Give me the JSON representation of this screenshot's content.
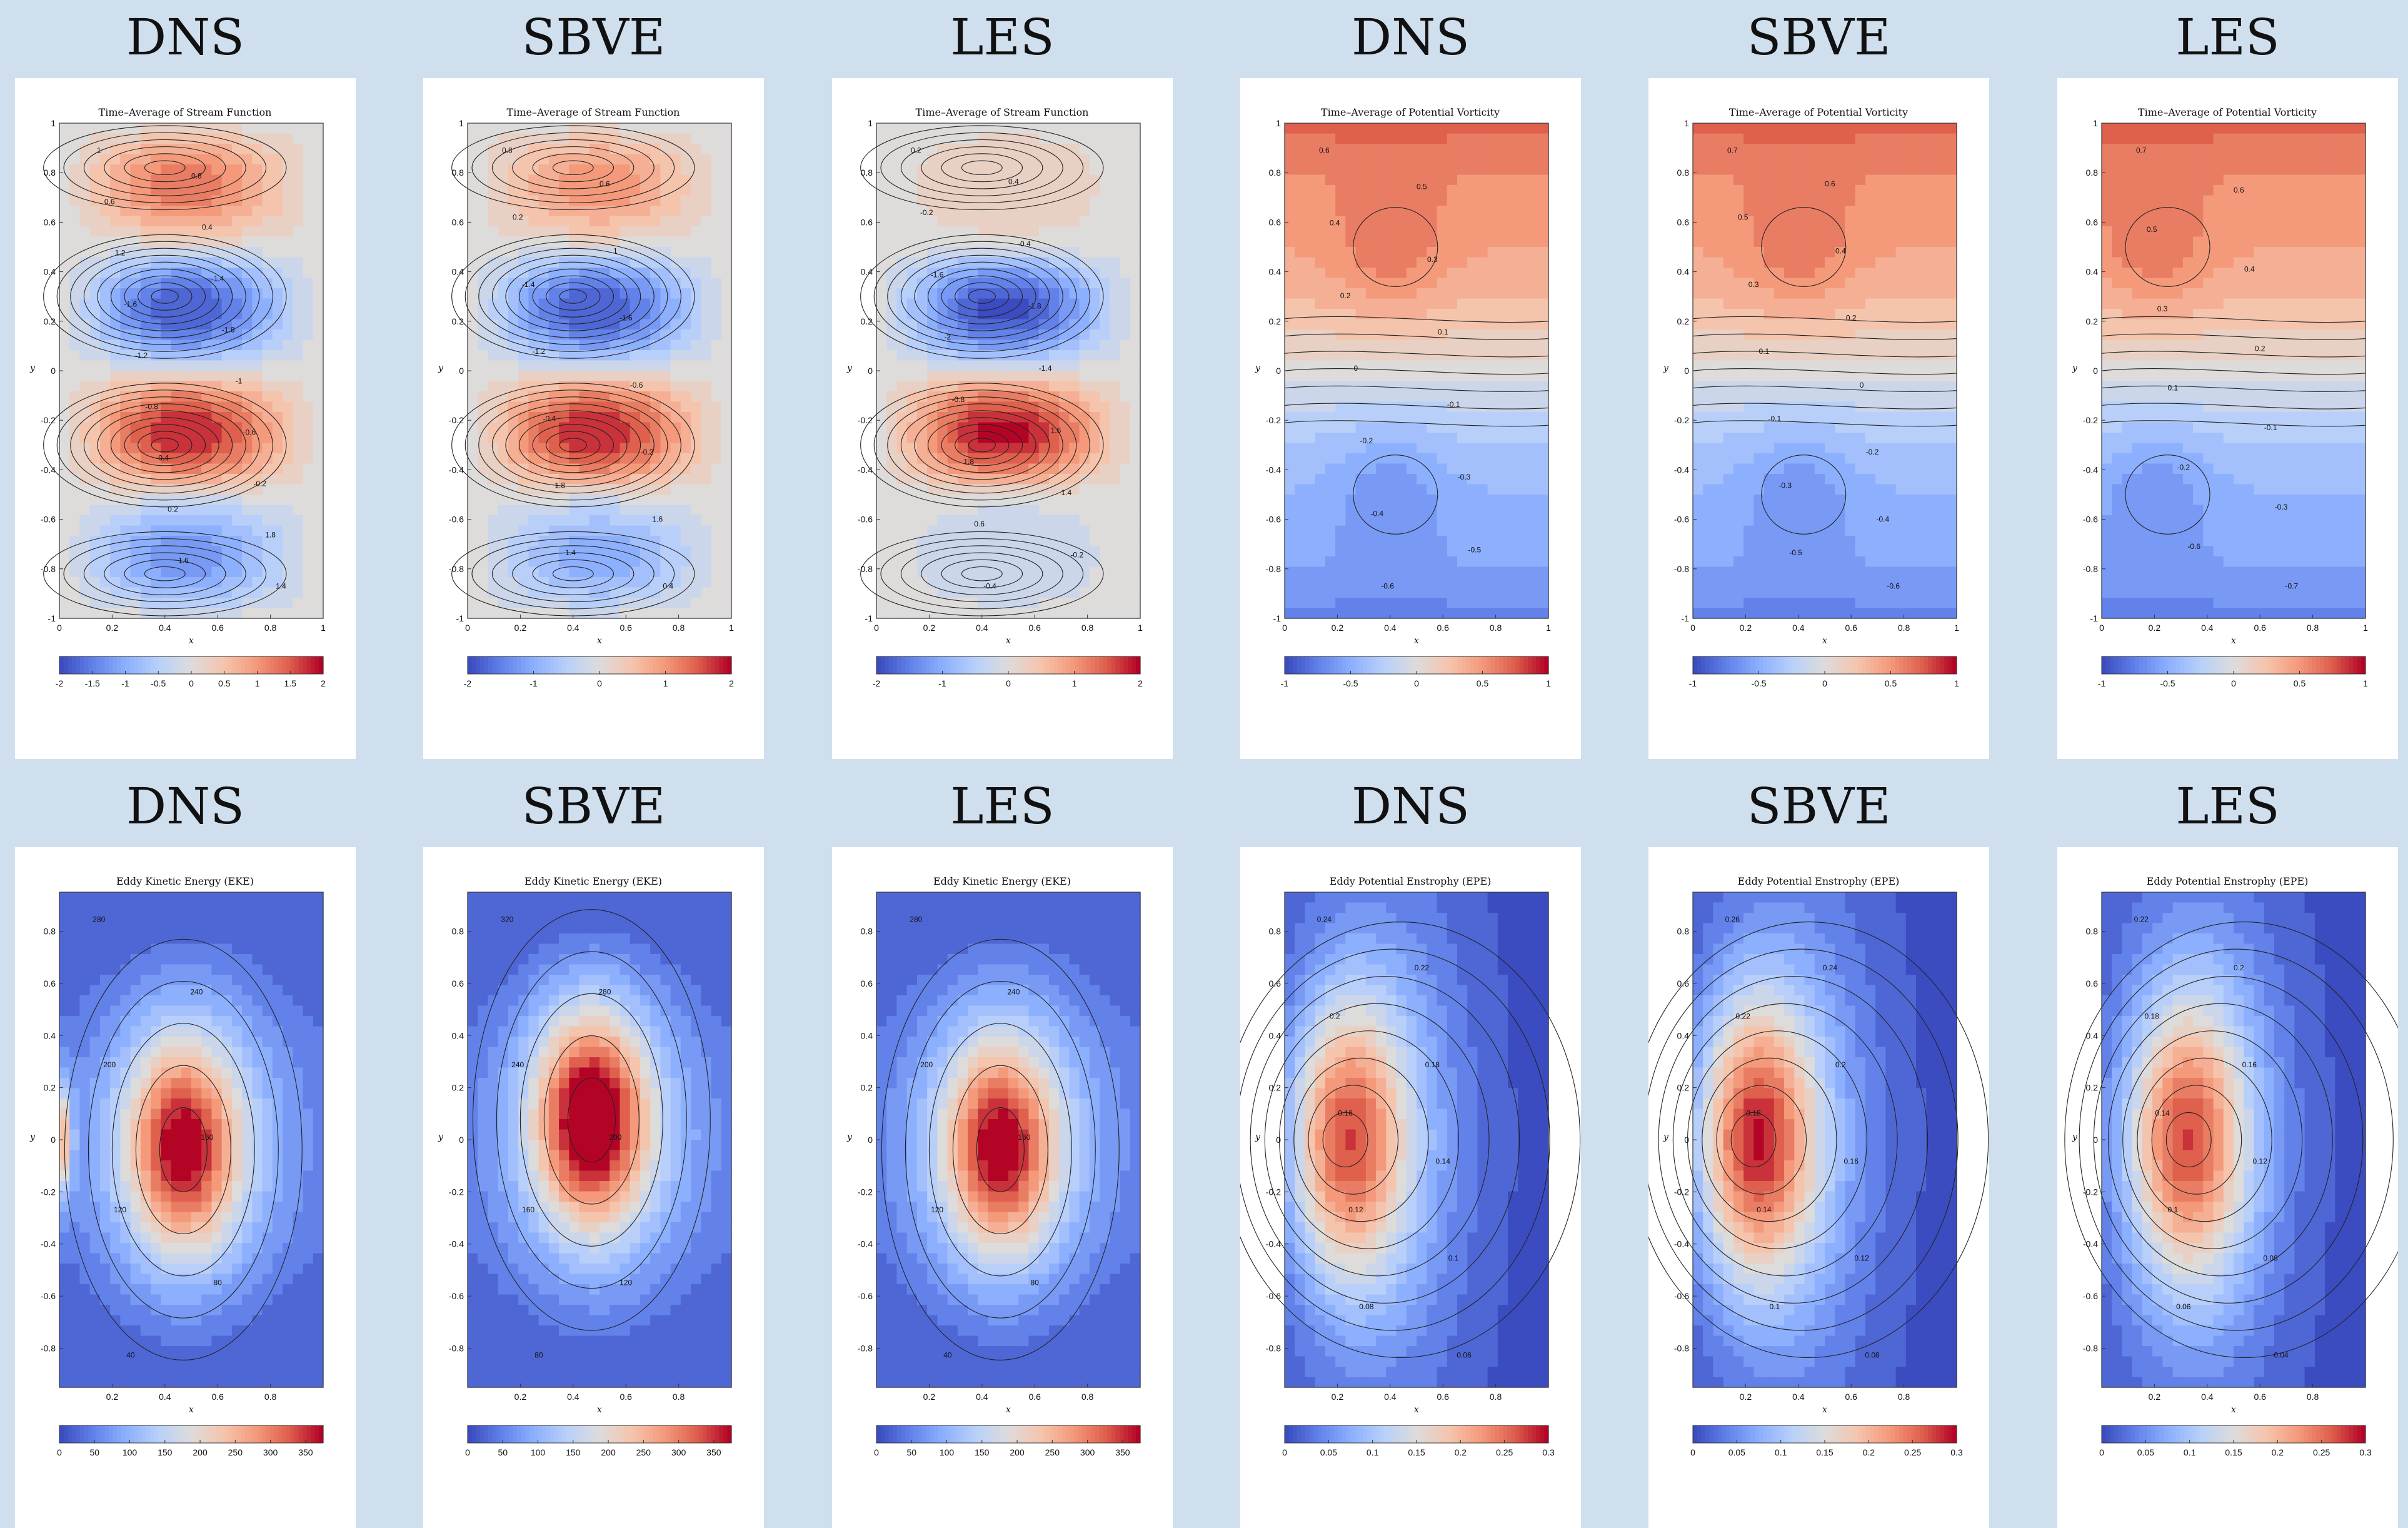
{
  "panels": [
    {
      "heading": "DNS",
      "title": "Time–Average of Stream Function",
      "cmap": "-2 -1.5 -1 -0.5 0 0.5 1 1.5 2",
      "kind": "stream",
      "variant": "dns",
      "labels": [
        "1",
        "0.8",
        "0.6",
        "0.4",
        "1.2",
        "-1.4",
        "-1.6",
        "-1.8",
        "-1.2",
        "-1",
        "-0.8",
        "-0.6",
        "-0.4",
        "-0.2",
        "0.2",
        "1.8",
        "1.6",
        "1.4"
      ]
    },
    {
      "heading": "SBVE",
      "title": "Time–Average of Stream Function",
      "cmap": "-2 -1 0 1 2",
      "kind": "stream",
      "variant": "sbve",
      "labels": [
        "0.8",
        "0.6",
        "0.2",
        "1",
        "-1.4",
        "-1.6",
        "-1.2",
        "-0.6",
        "-0.4",
        "-0.2",
        "1.8",
        "1.6",
        "1.4",
        "0.4"
      ]
    },
    {
      "heading": "LES",
      "title": "Time–Average of Stream Function",
      "cmap": "-2 -1 0 1 2",
      "kind": "stream",
      "variant": "les",
      "labels": [
        "0.2",
        "0.4",
        "-0.2",
        "-0.4",
        "-1.6",
        "-1.8",
        "-2",
        "-1.4",
        "-0.8",
        "1.6",
        "1.8",
        "1.4",
        "0.6",
        "-0.2",
        "-0.4"
      ]
    },
    {
      "heading": "DNS",
      "title": "Time–Average of Potential Vorticity",
      "cmap": "-1 -0.5 0 0.5 1",
      "kind": "pv",
      "variant": "dns",
      "labels": [
        "0.6",
        "0.5",
        "0.4",
        "0.3",
        "0.2",
        "0.1",
        "0",
        "-0.1",
        "-0.2",
        "-0.3",
        "-0.4",
        "-0.5",
        "-0.6"
      ]
    },
    {
      "heading": "SBVE",
      "title": "Time–Average of Potential Vorticity",
      "cmap": "-1 -0.5 0 0.5 1",
      "kind": "pv",
      "variant": "sbve",
      "labels": [
        "0.7",
        "0.6",
        "0.5",
        "0.4",
        "0.3",
        "0.2",
        "0.1",
        "0",
        "-0.1",
        "-0.2",
        "-0.3",
        "-0.4",
        "-0.5",
        "-0.6"
      ]
    },
    {
      "heading": "LES",
      "title": "Time–Average of Potential Vorticity",
      "cmap": "-1 -0.5 0 0.5 1",
      "kind": "pv",
      "variant": "les",
      "labels": [
        "0.7",
        "0.6",
        "0.5",
        "0.4",
        "0.3",
        "0.2",
        "0.1",
        "-0.1",
        "-0.2",
        "-0.3",
        "-0.6",
        "-0.7"
      ]
    },
    {
      "heading": "DNS",
      "title": "Eddy Kinetic Energy (EKE)",
      "cmap": "0 50 100 150 200 250 300 350",
      "kind": "eke",
      "variant": "dns",
      "labels": [
        "280",
        "240",
        "200",
        "160",
        "120",
        "80",
        "40"
      ]
    },
    {
      "heading": "SBVE",
      "title": "Eddy Kinetic Energy (EKE)",
      "cmap": "0 50 100 150 200 250 300 350",
      "kind": "eke",
      "variant": "sbve",
      "labels": [
        "320",
        "280",
        "240",
        "200",
        "160",
        "120",
        "80"
      ]
    },
    {
      "heading": "LES",
      "title": "Eddy Kinetic Energy (EKE)",
      "cmap": "0 50 100 150 200 250 300 350",
      "kind": "eke",
      "variant": "les",
      "labels": [
        "280",
        "240",
        "200",
        "160",
        "120",
        "80",
        "40"
      ]
    },
    {
      "heading": "DNS",
      "title": "Eddy Potential Enstrophy (EPE)",
      "cmap": "0 0.05 0.1 0.15 0.2 0.25 0.3",
      "kind": "epe",
      "variant": "dns",
      "labels": [
        "0.24",
        "0.22",
        "0.2",
        "0.18",
        "0.16",
        "0.14",
        "0.12",
        "0.1",
        "0.08",
        "0.06"
      ]
    },
    {
      "heading": "SBVE",
      "title": "Eddy Potential Enstrophy (EPE)",
      "cmap": "0 0.05 0.1 0.15 0.2 0.25 0.3",
      "kind": "epe",
      "variant": "sbve",
      "labels": [
        "0.26",
        "0.24",
        "0.22",
        "0.2",
        "0.18",
        "0.16",
        "0.14",
        "0.12",
        "0.1",
        "0.08"
      ]
    },
    {
      "heading": "LES",
      "title": "Eddy Potential Enstrophy (EPE)",
      "cmap": "0 0.05 0.1 0.15 0.2 0.25 0.3",
      "kind": "epe",
      "variant": "les",
      "labels": [
        "0.22",
        "0.2",
        "0.18",
        "0.16",
        "0.14",
        "0.12",
        "0.1",
        "0.08",
        "0.06",
        "0.04"
      ]
    }
  ],
  "axes": {
    "xlabel": "x",
    "ylabel": "y",
    "top_xticks": "0 0.2 0.4 0.6 0.8 1",
    "top_yticks": "-1 -0.8 -0.6 -0.4 -0.2 0 0.2 0.4 0.6 0.8 1",
    "bottom_xticks": "0.2 0.4 0.6 0.8",
    "bottom_yticks": "-0.8 -0.6 -0.4 -0.2 0 0.2 0.4 0.6 0.8"
  },
  "colors": {
    "page": "#d0dfee",
    "cold_end": "#3b4cc0",
    "neutral": "#dddcdb",
    "warm_end": "#b40426",
    "contour": "#222222"
  },
  "chart_data": [
    {
      "type": "heatmap",
      "panel": 1,
      "title": "Time–Average of Stream Function",
      "xlabel": "x",
      "ylabel": "y",
      "xlim": [
        0,
        1
      ],
      "ylim": [
        -1,
        1
      ],
      "colorbar": [
        -2,
        2
      ],
      "gyres": [
        {
          "center": [
            0.4,
            0.82
          ],
          "value": 1.2
        },
        {
          "center": [
            0.4,
            0.3
          ],
          "value": -1.8
        },
        {
          "center": [
            0.4,
            -0.3
          ],
          "value": 1.8
        },
        {
          "center": [
            0.4,
            -0.82
          ],
          "value": -1.2
        }
      ]
    },
    {
      "type": "heatmap",
      "panel": 2,
      "title": "Time–Average of Stream Function",
      "xlabel": "x",
      "ylabel": "y",
      "xlim": [
        0,
        1
      ],
      "ylim": [
        -1,
        1
      ],
      "colorbar": [
        -2,
        2
      ],
      "gyres": [
        {
          "center": [
            0.4,
            0.82
          ],
          "value": 1.0
        },
        {
          "center": [
            0.4,
            0.3
          ],
          "value": -1.6
        },
        {
          "center": [
            0.4,
            -0.3
          ],
          "value": 1.8
        },
        {
          "center": [
            0.4,
            -0.82
          ],
          "value": -1.2
        }
      ]
    },
    {
      "type": "heatmap",
      "panel": 3,
      "title": "Time–Average of Stream Function",
      "xlabel": "x",
      "ylabel": "y",
      "xlim": [
        0,
        1
      ],
      "ylim": [
        -1,
        1
      ],
      "colorbar": [
        -2,
        2
      ],
      "gyres": [
        {
          "center": [
            0.4,
            0.82
          ],
          "value": 0.4
        },
        {
          "center": [
            0.4,
            0.3
          ],
          "value": -2.0
        },
        {
          "center": [
            0.4,
            -0.3
          ],
          "value": 2.0
        },
        {
          "center": [
            0.4,
            -0.82
          ],
          "value": -0.4
        }
      ]
    },
    {
      "type": "heatmap",
      "panel": 4,
      "title": "Time–Average of Potential Vorticity",
      "xlabel": "x",
      "ylabel": "y",
      "xlim": [
        0,
        1
      ],
      "ylim": [
        -1,
        1
      ],
      "colorbar": [
        -1,
        1
      ],
      "extrema": [
        {
          "center": [
            0.4,
            0.5
          ],
          "value": 0.6
        },
        {
          "center": [
            0.4,
            -0.5
          ],
          "value": -0.6
        }
      ]
    },
    {
      "type": "heatmap",
      "panel": 5,
      "title": "Time–Average of Potential Vorticity",
      "xlabel": "x",
      "ylabel": "y",
      "xlim": [
        0,
        1
      ],
      "ylim": [
        -1,
        1
      ],
      "colorbar": [
        -1,
        1
      ],
      "extrema": [
        {
          "center": [
            0.38,
            0.52
          ],
          "value": 0.7
        },
        {
          "center": [
            0.38,
            -0.52
          ],
          "value": -0.6
        }
      ]
    },
    {
      "type": "heatmap",
      "panel": 6,
      "title": "Time–Average of Potential Vorticity",
      "xlabel": "x",
      "ylabel": "y",
      "xlim": [
        0,
        1
      ],
      "ylim": [
        -1,
        1
      ],
      "colorbar": [
        -1,
        1
      ],
      "extrema": [
        {
          "center": [
            0.1,
            0.9
          ],
          "value": 0.7
        },
        {
          "center": [
            0.1,
            -0.9
          ],
          "value": -0.7
        }
      ]
    },
    {
      "type": "heatmap",
      "panel": 7,
      "title": "Eddy Kinetic Energy (EKE)",
      "xlabel": "x",
      "ylabel": "y",
      "xlim": [
        0,
        1
      ],
      "ylim": [
        -0.95,
        0.95
      ],
      "colorbar": [
        0,
        375
      ],
      "peak": {
        "center": [
          0.47,
          -0.03
        ],
        "value": 280
      }
    },
    {
      "type": "heatmap",
      "panel": 8,
      "title": "Eddy Kinetic Energy (EKE)",
      "xlabel": "x",
      "ylabel": "y",
      "xlim": [
        0,
        1
      ],
      "ylim": [
        -0.95,
        0.95
      ],
      "colorbar": [
        0,
        375
      ],
      "peak": {
        "center": [
          0.47,
          0.1
        ],
        "value": 320
      }
    },
    {
      "type": "heatmap",
      "panel": 9,
      "title": "Eddy Kinetic Energy (EKE)",
      "xlabel": "x",
      "ylabel": "y",
      "xlim": [
        0,
        1
      ],
      "ylim": [
        -0.95,
        0.95
      ],
      "colorbar": [
        0,
        375
      ],
      "peak": {
        "center": [
          0.47,
          -0.05
        ],
        "value": 280
      }
    },
    {
      "type": "heatmap",
      "panel": 10,
      "title": "Eddy Potential Enstrophy (EPE)",
      "xlabel": "x",
      "ylabel": "y",
      "xlim": [
        0,
        1
      ],
      "ylim": [
        -0.95,
        0.95
      ],
      "colorbar": [
        0,
        0.3
      ],
      "peak": {
        "center": [
          0.2,
          0.0
        ],
        "value": 0.24
      }
    },
    {
      "type": "heatmap",
      "panel": 11,
      "title": "Eddy Potential Enstrophy (EPE)",
      "xlabel": "x",
      "ylabel": "y",
      "xlim": [
        0,
        1
      ],
      "ylim": [
        -0.95,
        0.95
      ],
      "colorbar": [
        0,
        0.3
      ],
      "peak": {
        "center": [
          0.2,
          0.05
        ],
        "value": 0.26
      }
    },
    {
      "type": "heatmap",
      "panel": 12,
      "title": "Eddy Potential Enstrophy (EPE)",
      "xlabel": "x",
      "ylabel": "y",
      "xlim": [
        0,
        1
      ],
      "ylim": [
        -0.95,
        0.95
      ],
      "colorbar": [
        0,
        0.3
      ],
      "peak": {
        "center": [
          0.3,
          0.0
        ],
        "value": 0.22
      }
    }
  ]
}
